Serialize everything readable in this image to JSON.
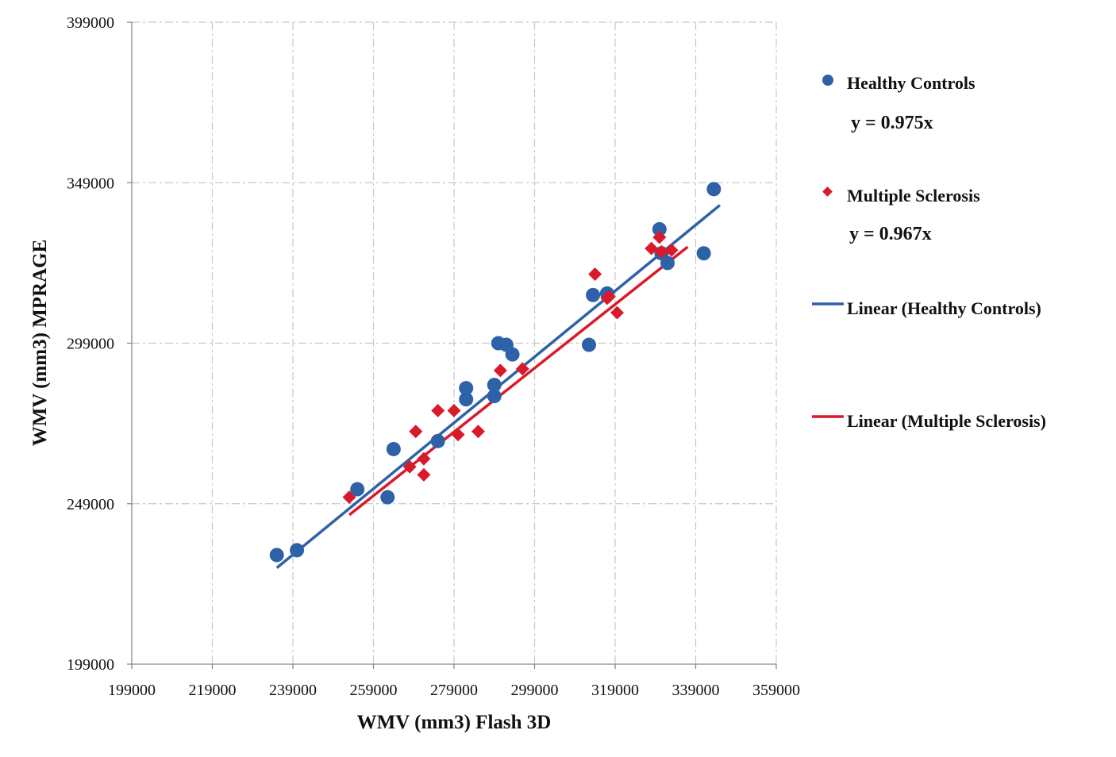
{
  "chart_data": {
    "type": "scatter",
    "title": "",
    "xlabel": "WMV (mm3) Flash 3D",
    "ylabel": "WMV (mm3) MPRAGE",
    "xlim": [
      199000,
      359000
    ],
    "ylim": [
      199000,
      399000
    ],
    "x_ticks": [
      199000,
      219000,
      239000,
      259000,
      279000,
      299000,
      319000,
      339000,
      359000
    ],
    "y_ticks": [
      199000,
      249000,
      299000,
      349000,
      399000
    ],
    "x_tick_labels": [
      "199000",
      "219000",
      "239000",
      "259000",
      "279000",
      "299000",
      "319000",
      "339000",
      "359000"
    ],
    "y_tick_labels": [
      "199000",
      "249000",
      "299000",
      "349000",
      "399000"
    ],
    "grid": true,
    "legend_position": "right",
    "series": [
      {
        "name": "Healthy Controls",
        "marker": "circle",
        "color": "#2E62A8",
        "equation": "y = 0.975x",
        "points": [
          [
            235000,
            233000
          ],
          [
            240000,
            234500
          ],
          [
            255000,
            253500
          ],
          [
            262500,
            251000
          ],
          [
            264000,
            266000
          ],
          [
            275000,
            268500
          ],
          [
            282000,
            285000
          ],
          [
            282000,
            281500
          ],
          [
            289000,
            286000
          ],
          [
            289000,
            282500
          ],
          [
            290000,
            299000
          ],
          [
            292000,
            298500
          ],
          [
            293500,
            295500
          ],
          [
            312500,
            298500
          ],
          [
            313500,
            314000
          ],
          [
            317000,
            314500
          ],
          [
            330000,
            334500
          ],
          [
            330500,
            327000
          ],
          [
            332000,
            324000
          ],
          [
            341000,
            327000
          ],
          [
            343500,
            347000
          ]
        ]
      },
      {
        "name": "Multiple Sclerosis",
        "marker": "diamond",
        "color": "#D91A2A",
        "equation": "y = 0.967x",
        "points": [
          [
            253000,
            251000
          ],
          [
            268000,
            260500
          ],
          [
            269500,
            271500
          ],
          [
            271500,
            263000
          ],
          [
            271500,
            258000
          ],
          [
            275000,
            278000
          ],
          [
            279000,
            278000
          ],
          [
            280000,
            270500
          ],
          [
            285000,
            271500
          ],
          [
            290500,
            290500
          ],
          [
            296000,
            291000
          ],
          [
            314000,
            320500
          ],
          [
            317000,
            313000
          ],
          [
            317500,
            313500
          ],
          [
            319500,
            308500
          ],
          [
            328000,
            328500
          ],
          [
            330000,
            332000
          ],
          [
            330500,
            327500
          ],
          [
            333000,
            328000
          ]
        ]
      },
      {
        "name": "Linear (Healthy Controls)",
        "type": "trendline",
        "color": "#2E62A8",
        "x_range": [
          235000,
          345000
        ],
        "endpoints": [
          [
            235000,
            229000
          ],
          [
            345000,
            342000
          ]
        ]
      },
      {
        "name": "Linear (Multiple Sclerosis)",
        "type": "trendline",
        "color": "#D91A2A",
        "x_range": [
          253000,
          337000
        ],
        "endpoints": [
          [
            253000,
            245500
          ],
          [
            337000,
            329000
          ]
        ]
      }
    ]
  }
}
